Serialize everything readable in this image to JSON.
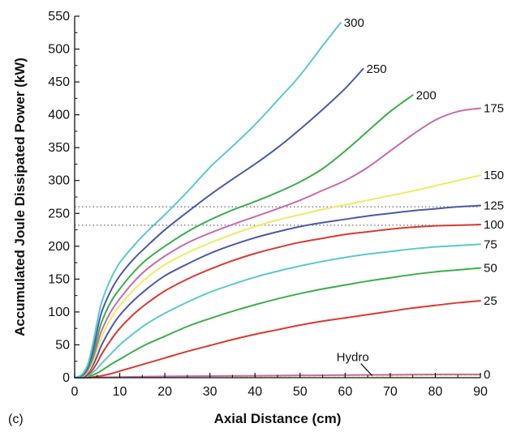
{
  "chart_data": {
    "type": "line",
    "panel_label": "(c)",
    "title": "",
    "xlabel": "Axial Distance (cm)",
    "ylabel": "Accumulated Joule Dissipated Power (kW)",
    "xlim": [
      0,
      90
    ],
    "ylim": [
      0,
      550
    ],
    "xticks": [
      0,
      10,
      20,
      30,
      40,
      50,
      60,
      70,
      80,
      90
    ],
    "yticks": [
      0,
      50,
      100,
      150,
      200,
      250,
      300,
      350,
      400,
      450,
      500,
      550
    ],
    "reference_lines": [
      {
        "y": 260,
        "style": "dotted"
      },
      {
        "y": 232,
        "style": "dotted"
      }
    ],
    "annotations": [
      {
        "text": "Hydro",
        "points_to": {
          "x": 66,
          "y": 3
        }
      }
    ],
    "series": [
      {
        "label": "300",
        "color": "#5bc8d2",
        "x": [
          0,
          1,
          2,
          3,
          4,
          5,
          6,
          8,
          10,
          13,
          16,
          20,
          25,
          30,
          35,
          40,
          45,
          50,
          55,
          59
        ],
        "y": [
          0,
          2,
          8,
          22,
          50,
          85,
          115,
          150,
          175,
          200,
          222,
          248,
          283,
          320,
          352,
          385,
          422,
          460,
          505,
          540
        ]
      },
      {
        "label": "250",
        "color": "#4a5aa8",
        "x": [
          0,
          1,
          2,
          3,
          4,
          5,
          6,
          8,
          10,
          13,
          16,
          20,
          25,
          30,
          35,
          40,
          45,
          50,
          55,
          60,
          64
        ],
        "y": [
          0,
          1,
          6,
          18,
          40,
          72,
          100,
          132,
          155,
          180,
          200,
          225,
          252,
          278,
          302,
          325,
          350,
          378,
          408,
          440,
          470
        ]
      },
      {
        "label": "200",
        "color": "#3cae4a",
        "x": [
          0,
          1,
          2,
          3,
          4,
          5,
          6,
          8,
          10,
          13,
          16,
          20,
          25,
          30,
          35,
          40,
          45,
          50,
          55,
          60,
          65,
          70,
          75
        ],
        "y": [
          0,
          1,
          5,
          15,
          33,
          60,
          85,
          115,
          135,
          160,
          180,
          200,
          222,
          240,
          255,
          268,
          282,
          298,
          318,
          345,
          375,
          405,
          430
        ]
      },
      {
        "label": "175",
        "color": "#c46cb0",
        "x": [
          0,
          2,
          3,
          4,
          5,
          6,
          8,
          10,
          13,
          16,
          20,
          25,
          30,
          35,
          40,
          45,
          50,
          55,
          60,
          65,
          70,
          75,
          80,
          85,
          90
        ],
        "y": [
          0,
          4,
          13,
          28,
          50,
          72,
          100,
          120,
          145,
          165,
          185,
          205,
          220,
          233,
          245,
          257,
          270,
          285,
          300,
          320,
          345,
          370,
          392,
          405,
          410
        ]
      },
      {
        "label": "150",
        "color": "#ecec62",
        "x": [
          0,
          2,
          3,
          4,
          5,
          6,
          8,
          10,
          13,
          16,
          20,
          25,
          30,
          35,
          40,
          45,
          50,
          55,
          60,
          65,
          70,
          75,
          80,
          85,
          90
        ],
        "y": [
          0,
          3,
          10,
          23,
          42,
          62,
          90,
          110,
          133,
          152,
          172,
          190,
          205,
          218,
          230,
          240,
          248,
          256,
          263,
          270,
          277,
          284,
          292,
          300,
          308
        ]
      },
      {
        "label": "125",
        "color": "#4a5aa8",
        "x": [
          0,
          2,
          3,
          4,
          5,
          6,
          8,
          10,
          13,
          16,
          20,
          25,
          30,
          35,
          40,
          45,
          50,
          55,
          60,
          65,
          70,
          75,
          80,
          85,
          90
        ],
        "y": [
          0,
          2,
          8,
          18,
          33,
          50,
          75,
          95,
          117,
          135,
          155,
          173,
          189,
          202,
          213,
          222,
          230,
          236,
          241,
          246,
          250,
          254,
          257,
          260,
          262
        ]
      },
      {
        "label": "100",
        "color": "#d93a30",
        "x": [
          0,
          2,
          3,
          4,
          5,
          6,
          8,
          10,
          13,
          16,
          20,
          25,
          30,
          35,
          40,
          45,
          50,
          55,
          60,
          65,
          70,
          75,
          80,
          85,
          90
        ],
        "y": [
          0,
          1,
          5,
          12,
          23,
          36,
          57,
          75,
          96,
          113,
          132,
          150,
          165,
          178,
          189,
          198,
          206,
          212,
          218,
          222,
          226,
          229,
          231,
          232,
          233
        ]
      },
      {
        "label": "75",
        "color": "#5bc8d2",
        "x": [
          0,
          2,
          3,
          4,
          5,
          6,
          8,
          10,
          13,
          16,
          20,
          25,
          30,
          35,
          40,
          45,
          50,
          55,
          60,
          65,
          70,
          75,
          80,
          85,
          90
        ],
        "y": [
          0,
          1,
          3,
          8,
          14,
          22,
          36,
          50,
          67,
          82,
          98,
          115,
          130,
          142,
          153,
          162,
          170,
          177,
          183,
          188,
          192,
          196,
          199,
          201,
          203
        ]
      },
      {
        "label": "50",
        "color": "#3cae4a",
        "x": [
          0,
          2,
          3,
          4,
          5,
          6,
          8,
          10,
          13,
          16,
          20,
          25,
          30,
          35,
          40,
          45,
          50,
          55,
          60,
          65,
          70,
          75,
          80,
          85,
          90
        ],
        "y": [
          0,
          0,
          2,
          4,
          7,
          11,
          20,
          28,
          40,
          51,
          63,
          78,
          90,
          101,
          111,
          120,
          128,
          135,
          141,
          147,
          152,
          157,
          161,
          164,
          167
        ]
      },
      {
        "label": "25",
        "color": "#d93a30",
        "x": [
          0,
          3,
          4,
          5,
          6,
          8,
          10,
          13,
          16,
          20,
          25,
          30,
          35,
          40,
          45,
          50,
          55,
          60,
          65,
          70,
          75,
          80,
          85,
          90
        ],
        "y": [
          0,
          0,
          1,
          2,
          3,
          6,
          10,
          16,
          22,
          30,
          40,
          49,
          58,
          66,
          73,
          80,
          86,
          91,
          96,
          101,
          106,
          110,
          114,
          117
        ]
      },
      {
        "label": "0",
        "color": "#c46cb0",
        "x": [
          0,
          5,
          10,
          20,
          30,
          40,
          50,
          60,
          70,
          80,
          90
        ],
        "y": [
          0,
          0.5,
          1,
          2,
          2.5,
          3,
          3.5,
          4,
          4.5,
          5,
          5
        ]
      },
      {
        "label": "",
        "color": "#ecec62",
        "dash": "3,3",
        "x": [
          0,
          10,
          20,
          30,
          40,
          50,
          60,
          70,
          80,
          90
        ],
        "y": [
          0,
          0.5,
          1,
          1.5,
          2,
          2.5,
          3,
          3,
          3.5,
          3.5
        ]
      }
    ]
  }
}
